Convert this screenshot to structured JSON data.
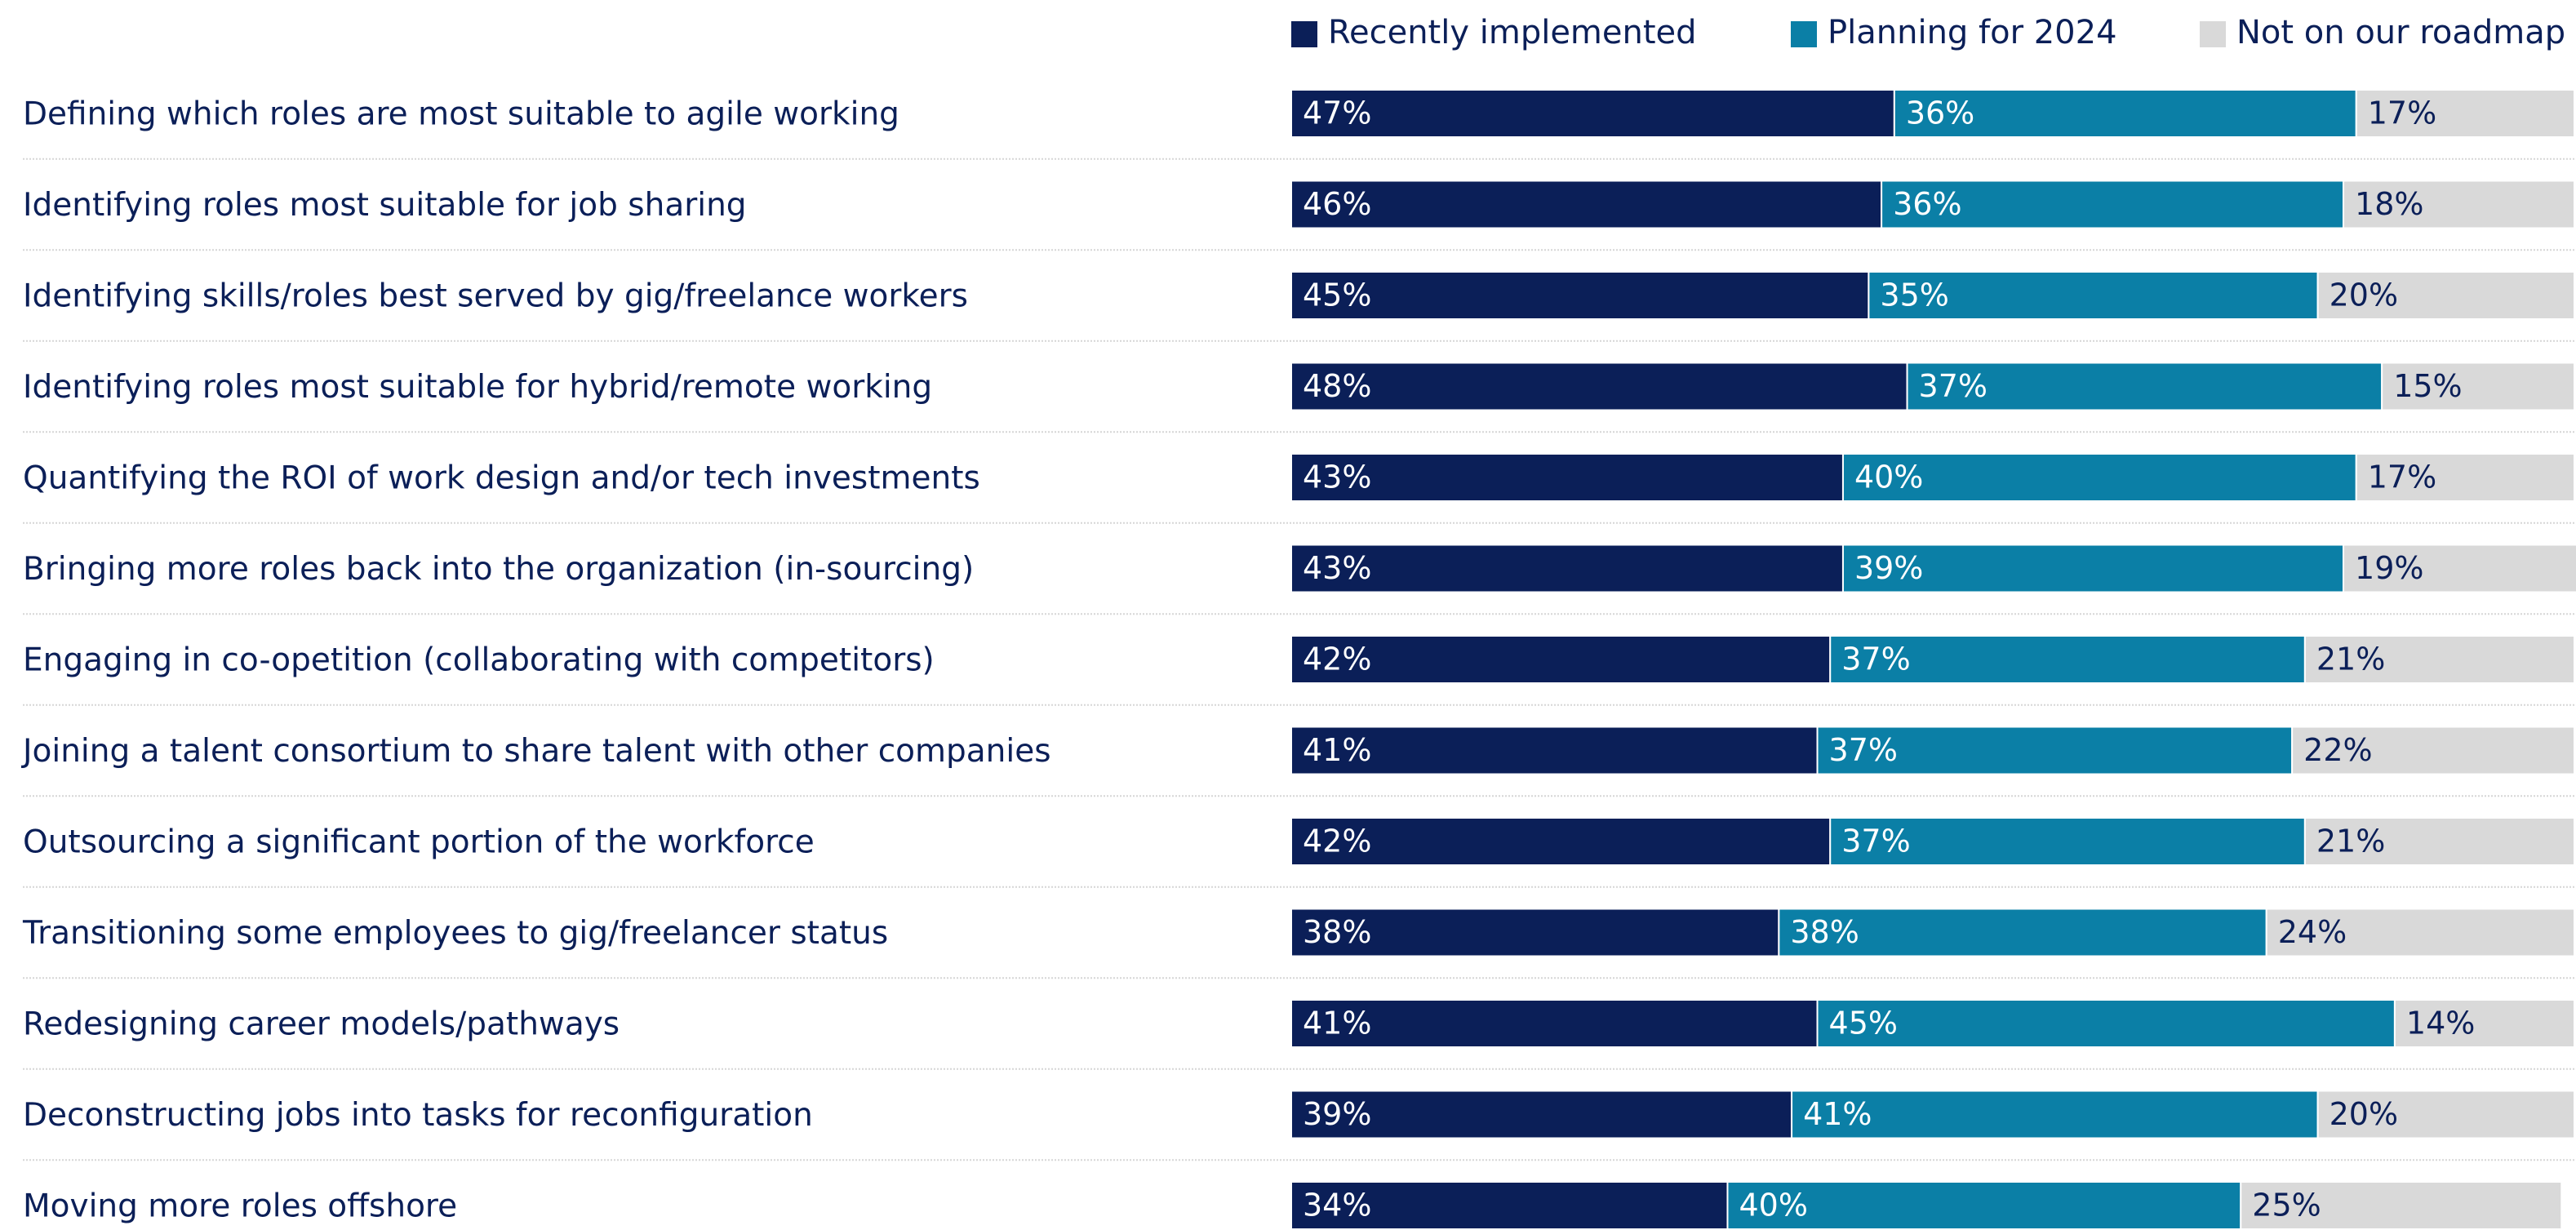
{
  "chart_data": {
    "type": "stacked-bar-horizontal",
    "categories": [
      "Defining which roles are most suitable to agile working",
      "Identifying roles most suitable for job sharing",
      "Identifying skills/roles best served by gig/freelance workers",
      "Identifying roles most suitable for hybrid/remote working",
      "Quantifying the ROI of work design and/or tech investments",
      "Bringing more roles back into the organization (in-sourcing)",
      "Engaging in co-opetition (collaborating with competitors)",
      "Joining a talent consortium to share talent with other companies",
      "Outsourcing a significant portion of the workforce",
      "Transitioning some employees to gig/freelancer status",
      "Redesigning career models/pathways",
      "Deconstructing jobs into tasks for reconfiguration",
      "Moving more roles offshore"
    ],
    "series": [
      {
        "name": "Recently implemented",
        "color": "#0b1f58",
        "label_color": "#ffffff",
        "values": [
          47,
          46,
          45,
          48,
          43,
          43,
          42,
          41,
          42,
          38,
          41,
          39,
          34
        ],
        "value_labels": [
          "47%",
          "46%",
          "45%",
          "48%",
          "43%",
          "43%",
          "42%",
          "41%",
          "42%",
          "38%",
          "41%",
          "39%",
          "34%"
        ]
      },
      {
        "name": "Planning for 2024",
        "color": "#0b7fa6",
        "label_color": "#ffffff",
        "values": [
          36,
          36,
          35,
          37,
          40,
          39,
          37,
          37,
          37,
          38,
          45,
          41,
          40
        ],
        "value_labels": [
          "36%",
          "36%",
          "35%",
          "37%",
          "40%",
          "39%",
          "37%",
          "37%",
          "37%",
          "38%",
          "45%",
          "41%",
          "40%"
        ]
      },
      {
        "name": "Not on our roadmap",
        "color": "#d9d9d9",
        "label_color": "#0b1f58",
        "values": [
          17,
          18,
          20,
          15,
          17,
          19,
          21,
          22,
          21,
          24,
          14,
          20,
          25
        ],
        "value_labels": [
          "17%",
          "18%",
          "20%",
          "15%",
          "17%",
          "19%",
          "21%",
          "22%",
          "21%",
          "24%",
          "14%",
          "20%",
          "25%"
        ]
      }
    ],
    "xlim": [
      0,
      100
    ]
  }
}
